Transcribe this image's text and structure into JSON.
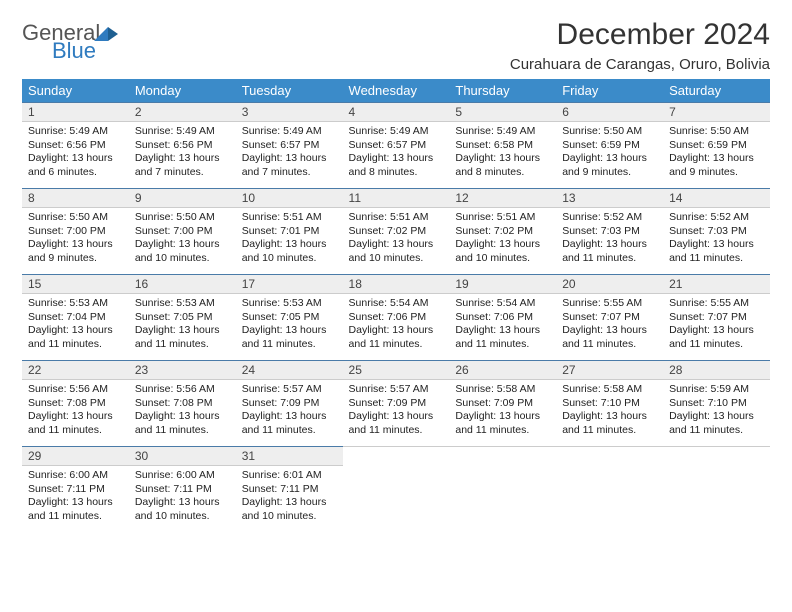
{
  "logo": {
    "line1": "General",
    "line2": "Blue"
  },
  "title": "December 2024",
  "location": "Curahuara de Carangas, Oruro, Bolivia",
  "colors": {
    "header_bg": "#3b8bc9",
    "header_text": "#ffffff",
    "daynum_bg": "#eeeeee",
    "daynum_border_top": "#4a7ba8",
    "logo_gray": "#555555",
    "logo_blue": "#2f7bbf"
  },
  "columns": [
    "Sunday",
    "Monday",
    "Tuesday",
    "Wednesday",
    "Thursday",
    "Friday",
    "Saturday"
  ],
  "weeks": [
    [
      {
        "n": "1",
        "sr": "5:49 AM",
        "ss": "6:56 PM",
        "dl": "13 hours and 6 minutes."
      },
      {
        "n": "2",
        "sr": "5:49 AM",
        "ss": "6:56 PM",
        "dl": "13 hours and 7 minutes."
      },
      {
        "n": "3",
        "sr": "5:49 AM",
        "ss": "6:57 PM",
        "dl": "13 hours and 7 minutes."
      },
      {
        "n": "4",
        "sr": "5:49 AM",
        "ss": "6:57 PM",
        "dl": "13 hours and 8 minutes."
      },
      {
        "n": "5",
        "sr": "5:49 AM",
        "ss": "6:58 PM",
        "dl": "13 hours and 8 minutes."
      },
      {
        "n": "6",
        "sr": "5:50 AM",
        "ss": "6:59 PM",
        "dl": "13 hours and 9 minutes."
      },
      {
        "n": "7",
        "sr": "5:50 AM",
        "ss": "6:59 PM",
        "dl": "13 hours and 9 minutes."
      }
    ],
    [
      {
        "n": "8",
        "sr": "5:50 AM",
        "ss": "7:00 PM",
        "dl": "13 hours and 9 minutes."
      },
      {
        "n": "9",
        "sr": "5:50 AM",
        "ss": "7:00 PM",
        "dl": "13 hours and 10 minutes."
      },
      {
        "n": "10",
        "sr": "5:51 AM",
        "ss": "7:01 PM",
        "dl": "13 hours and 10 minutes."
      },
      {
        "n": "11",
        "sr": "5:51 AM",
        "ss": "7:02 PM",
        "dl": "13 hours and 10 minutes."
      },
      {
        "n": "12",
        "sr": "5:51 AM",
        "ss": "7:02 PM",
        "dl": "13 hours and 10 minutes."
      },
      {
        "n": "13",
        "sr": "5:52 AM",
        "ss": "7:03 PM",
        "dl": "13 hours and 11 minutes."
      },
      {
        "n": "14",
        "sr": "5:52 AM",
        "ss": "7:03 PM",
        "dl": "13 hours and 11 minutes."
      }
    ],
    [
      {
        "n": "15",
        "sr": "5:53 AM",
        "ss": "7:04 PM",
        "dl": "13 hours and 11 minutes."
      },
      {
        "n": "16",
        "sr": "5:53 AM",
        "ss": "7:05 PM",
        "dl": "13 hours and 11 minutes."
      },
      {
        "n": "17",
        "sr": "5:53 AM",
        "ss": "7:05 PM",
        "dl": "13 hours and 11 minutes."
      },
      {
        "n": "18",
        "sr": "5:54 AM",
        "ss": "7:06 PM",
        "dl": "13 hours and 11 minutes."
      },
      {
        "n": "19",
        "sr": "5:54 AM",
        "ss": "7:06 PM",
        "dl": "13 hours and 11 minutes."
      },
      {
        "n": "20",
        "sr": "5:55 AM",
        "ss": "7:07 PM",
        "dl": "13 hours and 11 minutes."
      },
      {
        "n": "21",
        "sr": "5:55 AM",
        "ss": "7:07 PM",
        "dl": "13 hours and 11 minutes."
      }
    ],
    [
      {
        "n": "22",
        "sr": "5:56 AM",
        "ss": "7:08 PM",
        "dl": "13 hours and 11 minutes."
      },
      {
        "n": "23",
        "sr": "5:56 AM",
        "ss": "7:08 PM",
        "dl": "13 hours and 11 minutes."
      },
      {
        "n": "24",
        "sr": "5:57 AM",
        "ss": "7:09 PM",
        "dl": "13 hours and 11 minutes."
      },
      {
        "n": "25",
        "sr": "5:57 AM",
        "ss": "7:09 PM",
        "dl": "13 hours and 11 minutes."
      },
      {
        "n": "26",
        "sr": "5:58 AM",
        "ss": "7:09 PM",
        "dl": "13 hours and 11 minutes."
      },
      {
        "n": "27",
        "sr": "5:58 AM",
        "ss": "7:10 PM",
        "dl": "13 hours and 11 minutes."
      },
      {
        "n": "28",
        "sr": "5:59 AM",
        "ss": "7:10 PM",
        "dl": "13 hours and 11 minutes."
      }
    ],
    [
      {
        "n": "29",
        "sr": "6:00 AM",
        "ss": "7:11 PM",
        "dl": "13 hours and 11 minutes."
      },
      {
        "n": "30",
        "sr": "6:00 AM",
        "ss": "7:11 PM",
        "dl": "13 hours and 10 minutes."
      },
      {
        "n": "31",
        "sr": "6:01 AM",
        "ss": "7:11 PM",
        "dl": "13 hours and 10 minutes."
      },
      null,
      null,
      null,
      null
    ]
  ],
  "labels": {
    "sunrise": "Sunrise:",
    "sunset": "Sunset:",
    "daylight": "Daylight:"
  }
}
